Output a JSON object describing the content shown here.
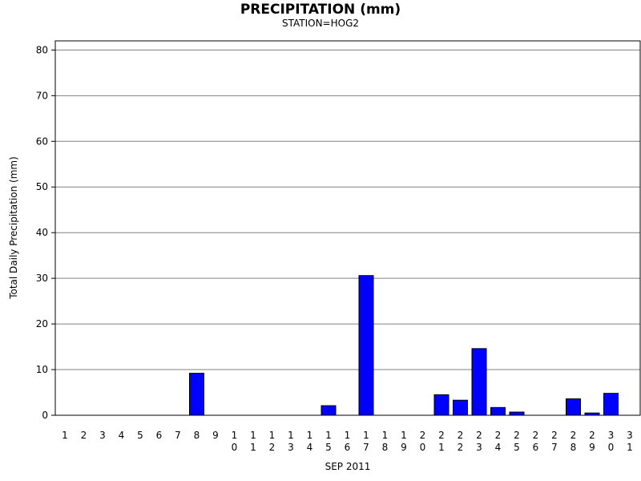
{
  "chart_data": {
    "type": "bar",
    "title": "PRECIPITATION (mm)",
    "subtitle": "STATION=HOG2",
    "xlabel": "SEP 2011",
    "ylabel": "Total Daily Precipitation (mm)",
    "ylim": [
      0,
      82
    ],
    "yticks": [
      0,
      10,
      20,
      30,
      40,
      50,
      60,
      70,
      80
    ],
    "grid": true,
    "bar_color": "#0000ff",
    "categories": [
      "1",
      "2",
      "3",
      "4",
      "5",
      "6",
      "7",
      "8",
      "9",
      "10",
      "11",
      "12",
      "13",
      "14",
      "15",
      "16",
      "17",
      "18",
      "19",
      "20",
      "21",
      "22",
      "23",
      "24",
      "25",
      "26",
      "27",
      "28",
      "29",
      "30",
      "31"
    ],
    "values": [
      0,
      0,
      0,
      0,
      0,
      0,
      0,
      9.2,
      0,
      0,
      0,
      0,
      0,
      0,
      2.1,
      0,
      30.6,
      0,
      0,
      0,
      4.5,
      3.3,
      14.6,
      1.7,
      0.7,
      0,
      0,
      3.6,
      0.5,
      4.8,
      0
    ]
  }
}
